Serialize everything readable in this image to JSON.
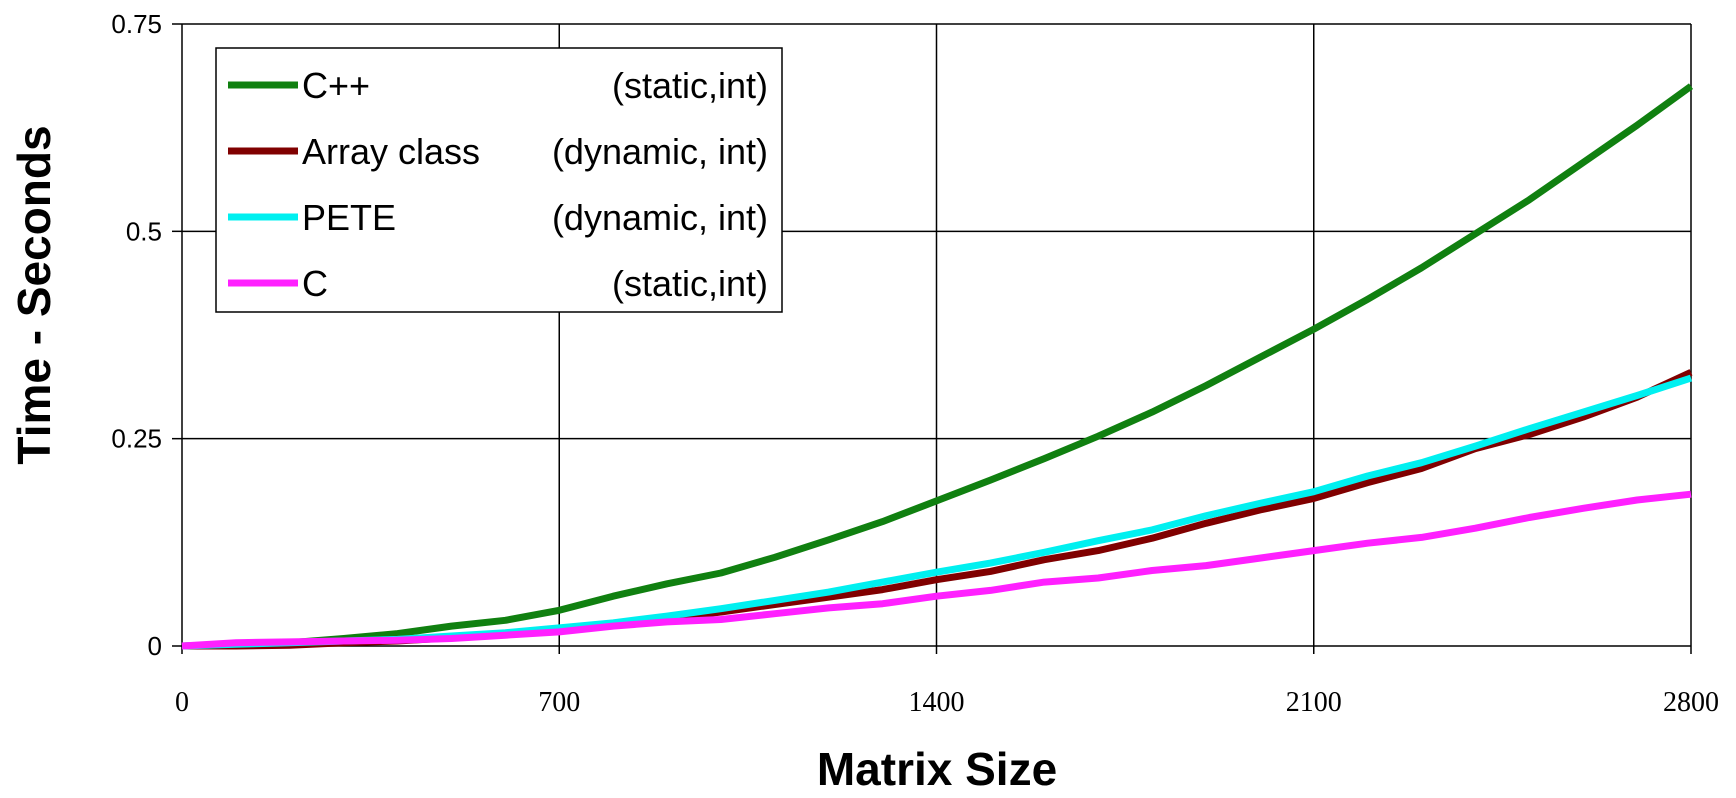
{
  "chart_data": {
    "type": "line",
    "title": "",
    "xlabel": "Matrix Size",
    "ylabel": "Time - Seconds",
    "xlim": [
      0,
      2800
    ],
    "ylim": [
      0,
      0.75
    ],
    "x_ticks": [
      0,
      700,
      1400,
      2100,
      2800
    ],
    "x_tick_labels": [
      "0",
      "700",
      "1400",
      "2100",
      "2800"
    ],
    "y_ticks": [
      0,
      0.25,
      0.5,
      0.75
    ],
    "y_tick_labels": [
      "0",
      "0.25",
      "0.5",
      "0.75"
    ],
    "grid": true,
    "legend_position": "top-left",
    "series": [
      {
        "name": "C++",
        "qualifier": "(static,int)",
        "color": "#108010",
        "x": [
          0,
          100,
          200,
          300,
          400,
          500,
          600,
          700,
          800,
          900,
          1000,
          1100,
          1200,
          1300,
          1400,
          1500,
          1600,
          1700,
          1800,
          1900,
          2000,
          2100,
          2200,
          2300,
          2400,
          2500,
          2600,
          2700,
          2800
        ],
        "y": [
          0,
          0.002,
          0.004,
          0.009,
          0.015,
          0.024,
          0.031,
          0.043,
          0.06,
          0.075,
          0.088,
          0.107,
          0.128,
          0.15,
          0.175,
          0.2,
          0.226,
          0.253,
          0.282,
          0.314,
          0.348,
          0.382,
          0.418,
          0.456,
          0.497,
          0.538,
          0.583,
          0.628,
          0.675
        ]
      },
      {
        "name": "Array class",
        "qualifier": "(dynamic, int)",
        "color": "#800000",
        "x": [
          0,
          100,
          200,
          300,
          400,
          500,
          600,
          700,
          800,
          900,
          1000,
          1100,
          1200,
          1300,
          1400,
          1500,
          1600,
          1700,
          1800,
          1900,
          2000,
          2100,
          2200,
          2300,
          2400,
          2500,
          2600,
          2700,
          2800
        ],
        "y": [
          0,
          0,
          0.001,
          0.004,
          0.006,
          0.01,
          0.015,
          0.02,
          0.027,
          0.033,
          0.041,
          0.05,
          0.059,
          0.068,
          0.08,
          0.09,
          0.104,
          0.115,
          0.13,
          0.148,
          0.164,
          0.178,
          0.197,
          0.214,
          0.238,
          0.255,
          0.276,
          0.3,
          0.33
        ]
      },
      {
        "name": "PETE",
        "qualifier": "(dynamic, int)",
        "color": "#00f0f0",
        "x": [
          0,
          100,
          200,
          300,
          400,
          500,
          600,
          700,
          800,
          900,
          1000,
          1100,
          1200,
          1300,
          1400,
          1500,
          1600,
          1700,
          1800,
          1900,
          2000,
          2100,
          2200,
          2300,
          2400,
          2500,
          2600,
          2700,
          2800
        ],
        "y": [
          0,
          0.002,
          0.004,
          0.006,
          0.008,
          0.012,
          0.016,
          0.022,
          0.028,
          0.036,
          0.045,
          0.055,
          0.065,
          0.077,
          0.089,
          0.1,
          0.113,
          0.127,
          0.14,
          0.157,
          0.172,
          0.186,
          0.205,
          0.221,
          0.241,
          0.262,
          0.282,
          0.302,
          0.323
        ]
      },
      {
        "name": "C",
        "qualifier": "(static,int)",
        "color": "#ff20ff",
        "x": [
          0,
          100,
          200,
          300,
          400,
          500,
          600,
          700,
          800,
          900,
          1000,
          1100,
          1200,
          1300,
          1400,
          1500,
          1600,
          1700,
          1800,
          1900,
          2000,
          2100,
          2200,
          2300,
          2400,
          2500,
          2600,
          2700,
          2800
        ],
        "y": [
          0,
          0.004,
          0.005,
          0.006,
          0.007,
          0.009,
          0.013,
          0.017,
          0.024,
          0.029,
          0.032,
          0.039,
          0.046,
          0.051,
          0.06,
          0.067,
          0.077,
          0.082,
          0.091,
          0.097,
          0.106,
          0.115,
          0.124,
          0.131,
          0.142,
          0.155,
          0.166,
          0.176,
          0.183
        ]
      }
    ]
  }
}
